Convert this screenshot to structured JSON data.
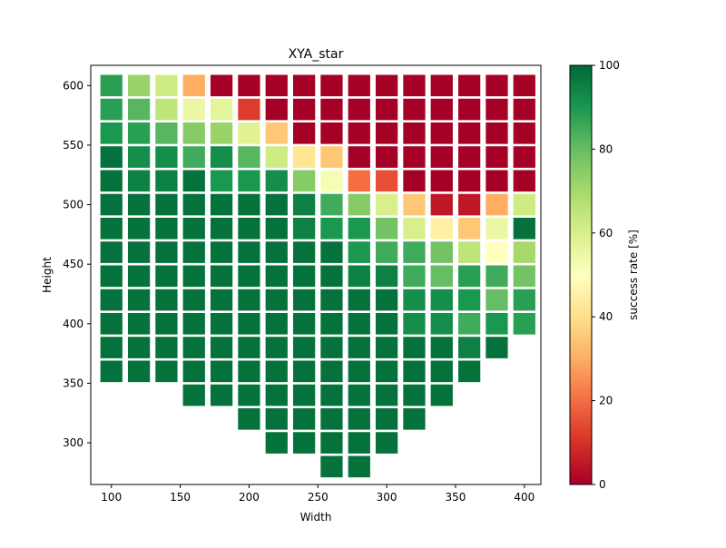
{
  "chart_data": {
    "type": "heatmap",
    "title": "XYA_star",
    "xlabel": "Width",
    "ylabel": "Height",
    "colorbar_label": "success rate [%]",
    "xlim": [
      85,
      412
    ],
    "ylim": [
      265,
      617
    ],
    "clim": [
      0,
      100
    ],
    "x_ticks": [
      100,
      150,
      200,
      250,
      300,
      350,
      400
    ],
    "y_ticks": [
      300,
      350,
      400,
      450,
      500,
      550,
      600
    ],
    "colorbar_ticks": [
      0,
      20,
      40,
      60,
      80,
      100
    ],
    "colormap": "RdYlGn",
    "cell_width": 16,
    "cell_height": 18,
    "x_values": [
      100,
      120,
      140,
      160,
      180,
      200,
      220,
      240,
      260,
      280,
      300,
      320,
      340,
      360,
      380,
      400
    ],
    "y_values": [
      600,
      580,
      560,
      540,
      520,
      500,
      480,
      460,
      440,
      420,
      400,
      380,
      360,
      340,
      320,
      300,
      280
    ],
    "rows": [
      [
        88,
        72,
        62,
        30,
        0,
        0,
        0,
        0,
        0,
        0,
        0,
        0,
        0,
        0,
        0,
        0
      ],
      [
        88,
        82,
        65,
        55,
        57,
        12,
        0,
        0,
        0,
        0,
        0,
        0,
        0,
        0,
        0,
        0
      ],
      [
        90,
        88,
        82,
        75,
        72,
        58,
        35,
        0,
        0,
        0,
        0,
        0,
        0,
        0,
        0,
        0
      ],
      [
        98,
        92,
        92,
        85,
        92,
        82,
        62,
        42,
        35,
        0,
        0,
        0,
        0,
        0,
        0,
        0
      ],
      [
        98,
        95,
        95,
        98,
        90,
        90,
        92,
        75,
        52,
        20,
        15,
        0,
        0,
        0,
        0,
        0
      ],
      [
        98,
        98,
        98,
        98,
        98,
        98,
        98,
        95,
        85,
        75,
        60,
        35,
        5,
        5,
        30,
        62
      ],
      [
        98,
        98,
        98,
        98,
        98,
        98,
        98,
        95,
        90,
        90,
        78,
        60,
        45,
        35,
        55,
        98
      ],
      [
        98,
        98,
        98,
        98,
        98,
        98,
        98,
        98,
        98,
        90,
        85,
        85,
        78,
        65,
        50,
        70
      ],
      [
        98,
        98,
        98,
        98,
        98,
        98,
        98,
        98,
        98,
        95,
        95,
        85,
        80,
        88,
        85,
        78
      ],
      [
        98,
        98,
        98,
        98,
        98,
        98,
        98,
        98,
        98,
        98,
        98,
        92,
        92,
        90,
        80,
        88
      ],
      [
        98,
        98,
        98,
        98,
        98,
        98,
        98,
        98,
        98,
        98,
        98,
        92,
        92,
        85,
        90,
        88
      ],
      [
        98,
        98,
        98,
        98,
        98,
        98,
        98,
        98,
        98,
        98,
        98,
        98,
        98,
        95,
        98,
        null
      ],
      [
        98,
        98,
        98,
        98,
        98,
        98,
        98,
        98,
        98,
        98,
        98,
        98,
        98,
        98,
        null,
        null
      ],
      [
        null,
        null,
        null,
        98,
        98,
        98,
        98,
        98,
        98,
        98,
        98,
        98,
        98,
        null,
        null,
        null
      ],
      [
        null,
        null,
        null,
        null,
        null,
        98,
        98,
        98,
        98,
        98,
        98,
        98,
        null,
        null,
        null,
        null
      ],
      [
        null,
        null,
        null,
        null,
        null,
        null,
        98,
        98,
        98,
        98,
        98,
        null,
        null,
        null,
        null,
        null
      ],
      [
        null,
        null,
        null,
        null,
        null,
        null,
        null,
        null,
        98,
        98,
        null,
        null,
        null,
        null,
        null,
        null
      ]
    ]
  }
}
